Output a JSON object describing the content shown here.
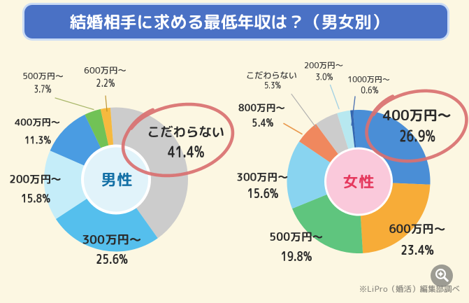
{
  "page": {
    "background": "#FCF7E2"
  },
  "header": {
    "title": "結婚相手に求める最低年収は？（男女別）",
    "bg": "#4A71C5",
    "border": "#CBDCF5",
    "text_color": "#FFFFFF"
  },
  "footer": {
    "credit": "※LiPro（婚活）編集部調べ"
  },
  "zoom_button": {
    "icon": "magnifier-zoom-icon"
  },
  "annotation": {
    "highlight_color": "#D97070",
    "note": "hand-drawn red ellipses circling the top answer of each donut"
  },
  "chart_data": [
    {
      "type": "donut",
      "group": "男性",
      "center_label": "男性",
      "units": "%",
      "colors": {
        "center_fill": "#E1F3FA",
        "center_ring": "#FFFFFF",
        "center_text": "#1470A6"
      },
      "segments": [
        {
          "label": "こだわらない",
          "value": 41.4,
          "color": "#CCCCCC",
          "highlighted": true
        },
        {
          "label": "300万円〜",
          "value": 25.6,
          "color": "#55BFED"
        },
        {
          "label": "200万円〜",
          "value": 15.8,
          "color": "#C5EDF9"
        },
        {
          "label": "400万円〜",
          "value": 11.3,
          "color": "#4A9CE2"
        },
        {
          "label": "500万円〜",
          "value": 3.7,
          "color": "#71C256"
        },
        {
          "label": "600万円〜",
          "value": 2.2,
          "color": "#F6B93E"
        }
      ]
    },
    {
      "type": "donut",
      "group": "女性",
      "center_label": "女性",
      "units": "%",
      "colors": {
        "center_fill": "#FAC9DB",
        "center_ring": "#FFFFFF",
        "center_text": "#E5395E"
      },
      "segments": [
        {
          "label": "400万円〜",
          "value": 26.9,
          "color": "#4A8ED6",
          "highlighted": true
        },
        {
          "label": "600万円〜",
          "value": 23.4,
          "color": "#F7AC38"
        },
        {
          "label": "500万円〜",
          "value": 19.8,
          "color": "#5FC57E"
        },
        {
          "label": "300万円〜",
          "value": 15.6,
          "color": "#89D4F0"
        },
        {
          "label": "800万円〜",
          "value": 5.4,
          "color": "#F0885E"
        },
        {
          "label": "こだわらない",
          "value": 5.3,
          "color": "#CCCCCC"
        },
        {
          "label": "200万円〜",
          "value": 3.0,
          "color": "#B7E8F0"
        },
        {
          "label": "1000万円〜",
          "value": 0.6,
          "color": "#3166B1"
        }
      ]
    }
  ]
}
